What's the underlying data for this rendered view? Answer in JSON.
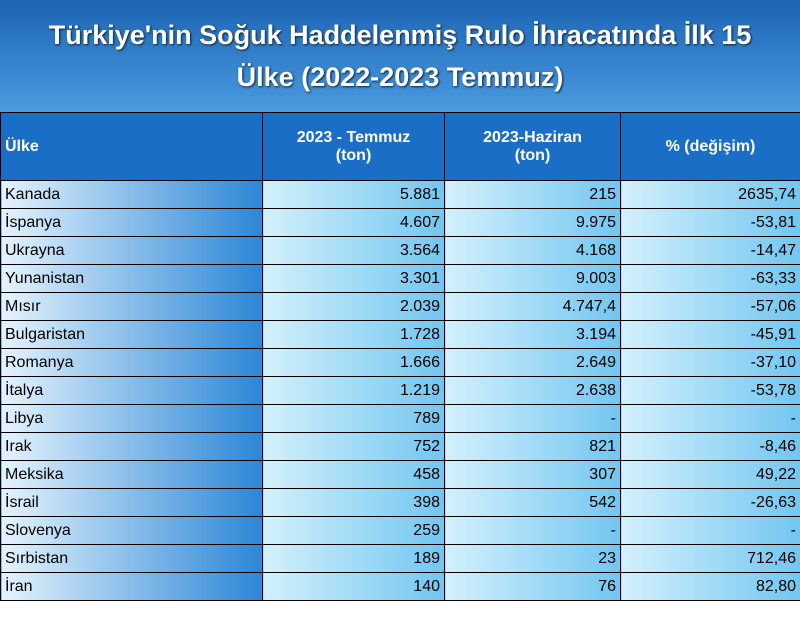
{
  "header": {
    "title": "Türkiye'nin Soğuk Haddelenmiş Rulo İhracatında İlk 15 Ülke (2022-2023 Temmuz)"
  },
  "table": {
    "columns": [
      [
        "Ülke"
      ],
      [
        "2023 - Temmuz",
        "(ton)"
      ],
      [
        "2023-Haziran",
        "(ton)"
      ],
      [
        "% (değişim)"
      ]
    ],
    "rows": [
      [
        "Kanada",
        "5.881",
        "215",
        "2635,74"
      ],
      [
        "İspanya",
        "4.607",
        "9.975",
        "-53,81"
      ],
      [
        "Ukrayna",
        "3.564",
        "4.168",
        "-14,47"
      ],
      [
        "Yunanistan",
        "3.301",
        "9.003",
        "-63,33"
      ],
      [
        "Mısır",
        "2.039",
        "4.747,4",
        "-57,06"
      ],
      [
        "Bulgaristan",
        "1.728",
        "3.194",
        "-45,91"
      ],
      [
        "Romanya",
        "1.666",
        "2.649",
        "-37,10"
      ],
      [
        "İtalya",
        "1.219",
        "2.638",
        "-53,78"
      ],
      [
        "Libya",
        "789",
        "-",
        "-"
      ],
      [
        "Irak",
        "752",
        "821",
        "-8,46"
      ],
      [
        "Meksika",
        "458",
        "307",
        "49,22"
      ],
      [
        "İsrail",
        "398",
        "542",
        "-26,63"
      ],
      [
        "Slovenya",
        "259",
        "-",
        "-"
      ],
      [
        "Sırbistan",
        "189",
        "23",
        "712,46"
      ],
      [
        "İran",
        "140",
        "76",
        "82,80"
      ]
    ]
  }
}
